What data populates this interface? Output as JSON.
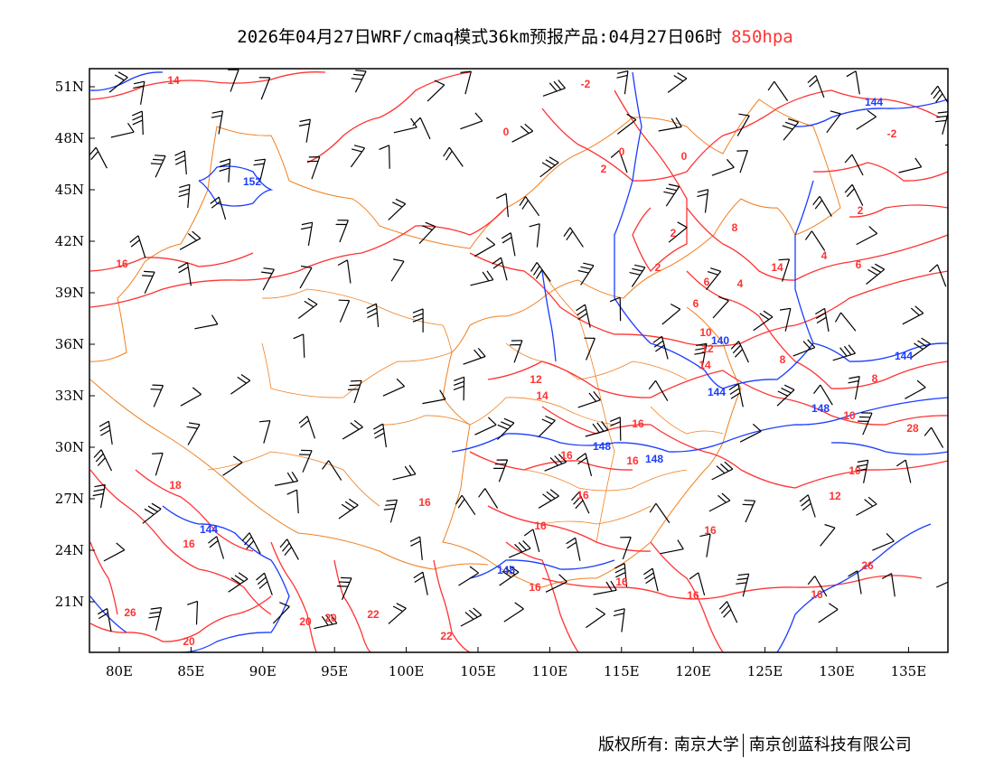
{
  "title": {
    "text": "2026年04月27日WRF/cmaq模式36km预报产品:04月27日06时",
    "level": "850hpa"
  },
  "axes": {
    "lon_labels": [
      "80E",
      "85E",
      "90E",
      "95E",
      "100E",
      "105E",
      "110E",
      "115E",
      "120E",
      "125E",
      "130E",
      "135E"
    ],
    "lat_labels": [
      "51N",
      "48N",
      "45N",
      "42N",
      "39N",
      "36N",
      "33N",
      "30N",
      "27N",
      "24N",
      "21N"
    ]
  },
  "colors": {
    "temperature_contour": "#ff3333",
    "height_contour": "#1a3cff",
    "boundary": "#f08020",
    "wind_barb": "#000000"
  },
  "temperature_labels": [
    "14",
    "-2",
    "2",
    "0",
    "0",
    "-2",
    "2",
    "2",
    "2",
    "4",
    "6",
    "8",
    "6",
    "4",
    "6",
    "10",
    "12",
    "14",
    "12",
    "14",
    "10",
    "8",
    "8",
    "10",
    "12",
    "14",
    "16",
    "16",
    "16",
    "16",
    "16",
    "16",
    "16",
    "16",
    "16",
    "16",
    "18",
    "16",
    "16",
    "20",
    "20",
    "22",
    "22",
    "20",
    "26",
    "26",
    "28",
    "16",
    "0"
  ],
  "height_labels": [
    "152",
    "144",
    "140",
    "144",
    "144",
    "148",
    "148",
    "148",
    "148",
    "144"
  ],
  "footer": {
    "copyright": "版权所有: 南京大学",
    "company": "南京创蓝科技有限公司"
  }
}
